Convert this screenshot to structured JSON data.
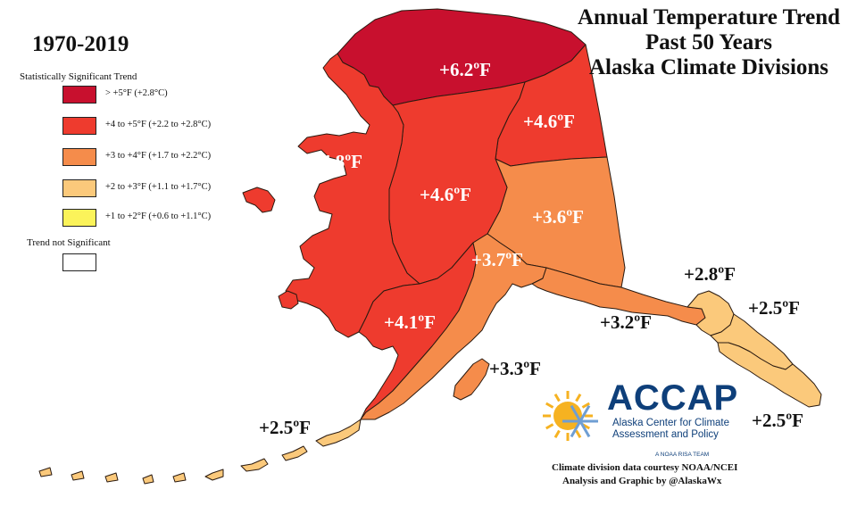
{
  "title": {
    "line1": "Annual Temperature Trend",
    "line2": "Past 50 Years",
    "line3": "Alaska Climate Divisions"
  },
  "period": "1970-2019",
  "legend": {
    "heading": "Statistically Significant Trend",
    "items": [
      {
        "label": "> +5°F (+2.8°C)",
        "color": "#c8102e"
      },
      {
        "label": "+4 to +5°F (+2.2 to +2.8°C)",
        "color": "#ee3b2e"
      },
      {
        "label": "+3 to +4°F (+1.7 to +2.2°C)",
        "color": "#f58c4b"
      },
      {
        "label": "+2 to +3°F (+1.1 to +1.7°C)",
        "color": "#fbc97b"
      },
      {
        "label": "+1 to +2°F (+0.6 to +1.1°C)",
        "color": "#fbf35a"
      }
    ],
    "not_significant_label": "Trend not Significant",
    "not_significant_color": "#ffffff"
  },
  "regions": [
    {
      "name": "north-slope",
      "trend": "+6.2ºF",
      "color": "#c8102e"
    },
    {
      "name": "northeast-interior",
      "trend": "+4.6ºF",
      "color": "#ee3b2e"
    },
    {
      "name": "west-coast",
      "trend": "+4.8ºF",
      "color": "#ee3b2e"
    },
    {
      "name": "central-interior",
      "trend": "+4.6ºF",
      "color": "#ee3b2e"
    },
    {
      "name": "southeast-interior",
      "trend": "+3.6ºF",
      "color": "#f58c4b"
    },
    {
      "name": "cook-inlet",
      "trend": "+3.7ºF",
      "color": "#f58c4b"
    },
    {
      "name": "bristol-bay",
      "trend": "+4.1ºF",
      "color": "#ee3b2e"
    },
    {
      "name": "kodiak",
      "trend": "+3.3ºF",
      "color": "#f58c4b"
    },
    {
      "name": "northeast-gulf",
      "trend": "+3.2ºF",
      "color": "#f58c4b"
    },
    {
      "name": "north-panhandle",
      "trend": "+2.8ºF",
      "color": "#fbc97b"
    },
    {
      "name": "central-panhandle",
      "trend": "+2.5ºF",
      "color": "#fbc97b"
    },
    {
      "name": "south-panhandle",
      "trend": "+2.5ºF",
      "color": "#fbc97b"
    },
    {
      "name": "aleutians",
      "trend": "+2.5ºF",
      "color": "#fbc97b"
    }
  ],
  "logo": {
    "acronym": "ACCAP",
    "subtitle": "Alaska Center for Climate Assessment and Policy",
    "team": "A NOAA RISA TEAM",
    "primary_color": "#0e3f7a",
    "sun_color": "#f6b221",
    "snowflake_color": "#6f9ed3"
  },
  "credits": {
    "line1": "Climate division data courtesy NOAA/NCEI",
    "line2": "Analysis and Graphic by @AlaskaWx"
  }
}
